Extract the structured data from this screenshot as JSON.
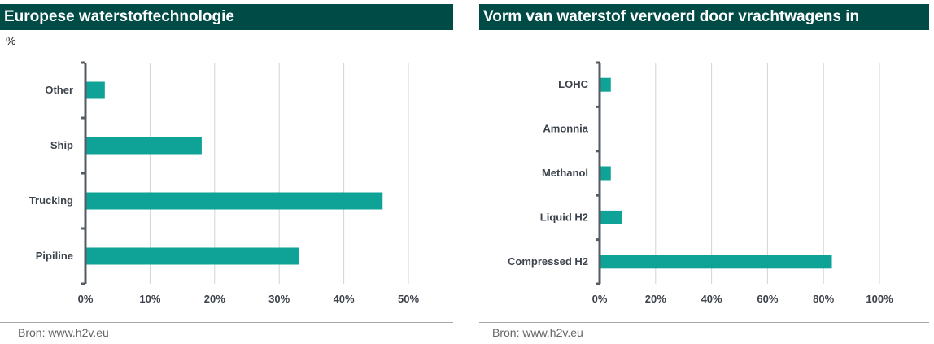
{
  "colors": {
    "header_bg": "#004b45",
    "bar": "#0fa397",
    "grid": "#d3d3d3",
    "axis": "#555b63",
    "label": "#3d434c"
  },
  "source_text": "Bron: www.h2v.eu",
  "chart_data": [
    {
      "type": "bar",
      "orientation": "horizontal",
      "title": "Europese waterstoftechnologie",
      "unit": "%",
      "categories": [
        "Other",
        "Ship",
        "Trucking",
        "Pipiline"
      ],
      "values": [
        3,
        18,
        46,
        33
      ],
      "xlim": [
        0,
        50
      ],
      "xticks": [
        "0%",
        "10%",
        "20%",
        "30%",
        "40%",
        "50%"
      ],
      "grid": true
    },
    {
      "type": "bar",
      "orientation": "horizontal",
      "title": "Vorm van waterstof vervoerd door vrachtwagens in",
      "categories": [
        "LOHC",
        "Amonnia",
        "Methanol",
        "Liquid H2",
        "Compressed H2"
      ],
      "values": [
        4,
        0,
        4,
        8,
        83
      ],
      "xlim": [
        0,
        100
      ],
      "xticks": [
        "0%",
        "20%",
        "40%",
        "60%",
        "80%",
        "100%"
      ],
      "grid": true
    }
  ]
}
